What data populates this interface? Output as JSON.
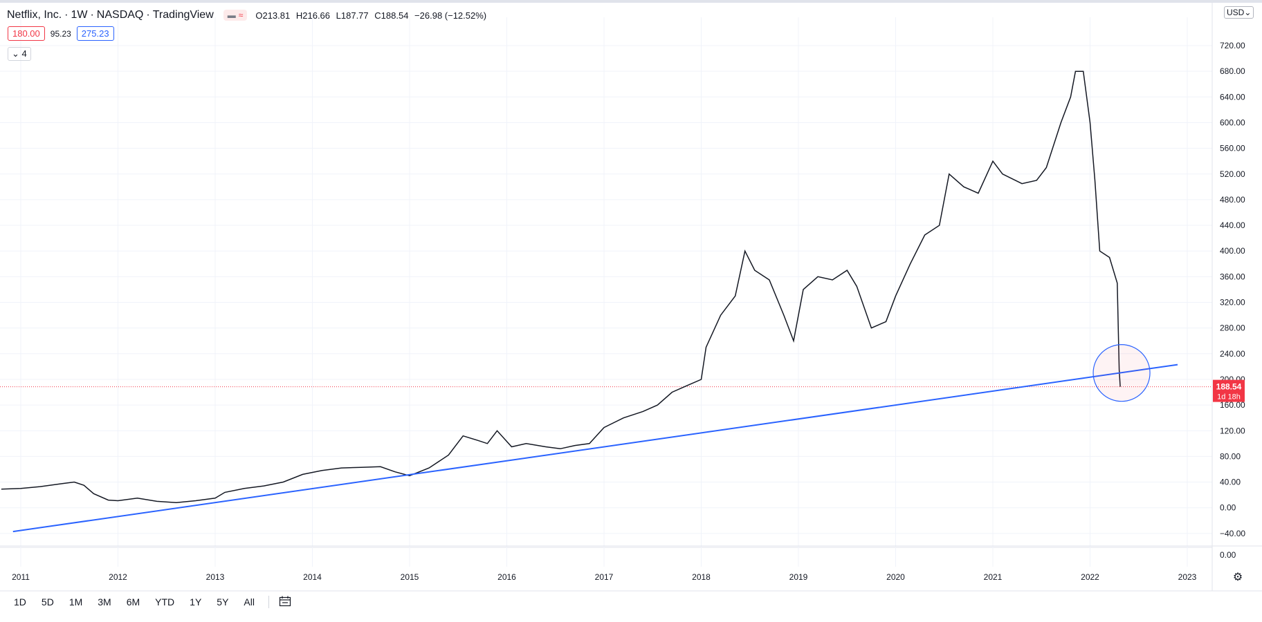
{
  "header": {
    "symbol": "Netflix, Inc.",
    "interval": "1W",
    "exchange": "NASDAQ",
    "source": "TradingView",
    "open_label": "O",
    "open": "213.81",
    "high_label": "H",
    "high": "216.66",
    "low_label": "L",
    "low": "187.77",
    "close_label": "C",
    "close": "188.54",
    "change": "−26.98 (−12.52%)"
  },
  "order_row": {
    "sell": "180.00",
    "spread": "95.23",
    "buy": "275.23"
  },
  "indicator_toggle": {
    "count": "4"
  },
  "currency": "USD",
  "price_marker": {
    "price": "188.54",
    "countdown": "1d 18h",
    "color": "#f23645"
  },
  "range_buttons": [
    "1D",
    "5D",
    "1M",
    "3M",
    "6M",
    "YTD",
    "1Y",
    "5Y",
    "All"
  ],
  "chart_data": {
    "type": "line",
    "title": "",
    "x_axis_years": [
      "2011",
      "2012",
      "2013",
      "2014",
      "2015",
      "2016",
      "2017",
      "2018",
      "2019",
      "2020",
      "2021",
      "2022",
      "2023"
    ],
    "y_axis_ticks": [
      "720.00",
      "680.00",
      "640.00",
      "600.00",
      "560.00",
      "520.00",
      "480.00",
      "440.00",
      "400.00",
      "360.00",
      "320.00",
      "280.00",
      "240.00",
      "200.00",
      "160.00",
      "120.00",
      "80.00",
      "40.00",
      "0.00",
      "−40.00"
    ],
    "indicator_pane_tick": "0.00",
    "ylim": [
      -60,
      740
    ],
    "grid": true,
    "series": [
      {
        "name": "",
        "color": "#131722",
        "points": [
          [
            2010.8,
            29
          ],
          [
            2011.0,
            30
          ],
          [
            2011.2,
            33
          ],
          [
            2011.4,
            37
          ],
          [
            2011.55,
            40
          ],
          [
            2011.65,
            35
          ],
          [
            2011.75,
            22
          ],
          [
            2011.9,
            12
          ],
          [
            2012.0,
            11
          ],
          [
            2012.2,
            15
          ],
          [
            2012.4,
            10
          ],
          [
            2012.6,
            8
          ],
          [
            2012.8,
            11
          ],
          [
            2013.0,
            15
          ],
          [
            2013.1,
            24
          ],
          [
            2013.3,
            30
          ],
          [
            2013.5,
            34
          ],
          [
            2013.7,
            40
          ],
          [
            2013.9,
            52
          ],
          [
            2014.1,
            58
          ],
          [
            2014.3,
            62
          ],
          [
            2014.5,
            63
          ],
          [
            2014.7,
            64
          ],
          [
            2014.85,
            56
          ],
          [
            2015.0,
            50
          ],
          [
            2015.2,
            62
          ],
          [
            2015.4,
            82
          ],
          [
            2015.55,
            112
          ],
          [
            2015.7,
            105
          ],
          [
            2015.8,
            100
          ],
          [
            2015.9,
            120
          ],
          [
            2016.05,
            95
          ],
          [
            2016.2,
            100
          ],
          [
            2016.4,
            95
          ],
          [
            2016.55,
            92
          ],
          [
            2016.7,
            97
          ],
          [
            2016.85,
            100
          ],
          [
            2017.0,
            125
          ],
          [
            2017.2,
            140
          ],
          [
            2017.4,
            150
          ],
          [
            2017.55,
            160
          ],
          [
            2017.7,
            180
          ],
          [
            2017.85,
            190
          ],
          [
            2018.0,
            200
          ],
          [
            2018.05,
            250
          ],
          [
            2018.2,
            300
          ],
          [
            2018.35,
            330
          ],
          [
            2018.45,
            400
          ],
          [
            2018.55,
            370
          ],
          [
            2018.7,
            355
          ],
          [
            2018.85,
            300
          ],
          [
            2018.95,
            260
          ],
          [
            2019.05,
            340
          ],
          [
            2019.2,
            360
          ],
          [
            2019.35,
            355
          ],
          [
            2019.5,
            370
          ],
          [
            2019.6,
            345
          ],
          [
            2019.75,
            280
          ],
          [
            2019.9,
            290
          ],
          [
            2020.0,
            330
          ],
          [
            2020.15,
            380
          ],
          [
            2020.3,
            425
          ],
          [
            2020.45,
            440
          ],
          [
            2020.55,
            520
          ],
          [
            2020.7,
            500
          ],
          [
            2020.85,
            490
          ],
          [
            2021.0,
            540
          ],
          [
            2021.1,
            520
          ],
          [
            2021.3,
            505
          ],
          [
            2021.45,
            510
          ],
          [
            2021.55,
            530
          ],
          [
            2021.7,
            600
          ],
          [
            2021.8,
            640
          ],
          [
            2021.85,
            680
          ],
          [
            2021.93,
            680
          ],
          [
            2022.0,
            600
          ],
          [
            2022.05,
            510
          ],
          [
            2022.1,
            400
          ],
          [
            2022.2,
            390
          ],
          [
            2022.28,
            350
          ],
          [
            2022.3,
            215
          ],
          [
            2022.31,
            188.54
          ]
        ]
      },
      {
        "name": "",
        "color": "#2962ff",
        "points": [
          [
            2010.92,
            -37
          ],
          [
            2022.9,
            223
          ]
        ]
      }
    ],
    "current_price": 188.54
  }
}
